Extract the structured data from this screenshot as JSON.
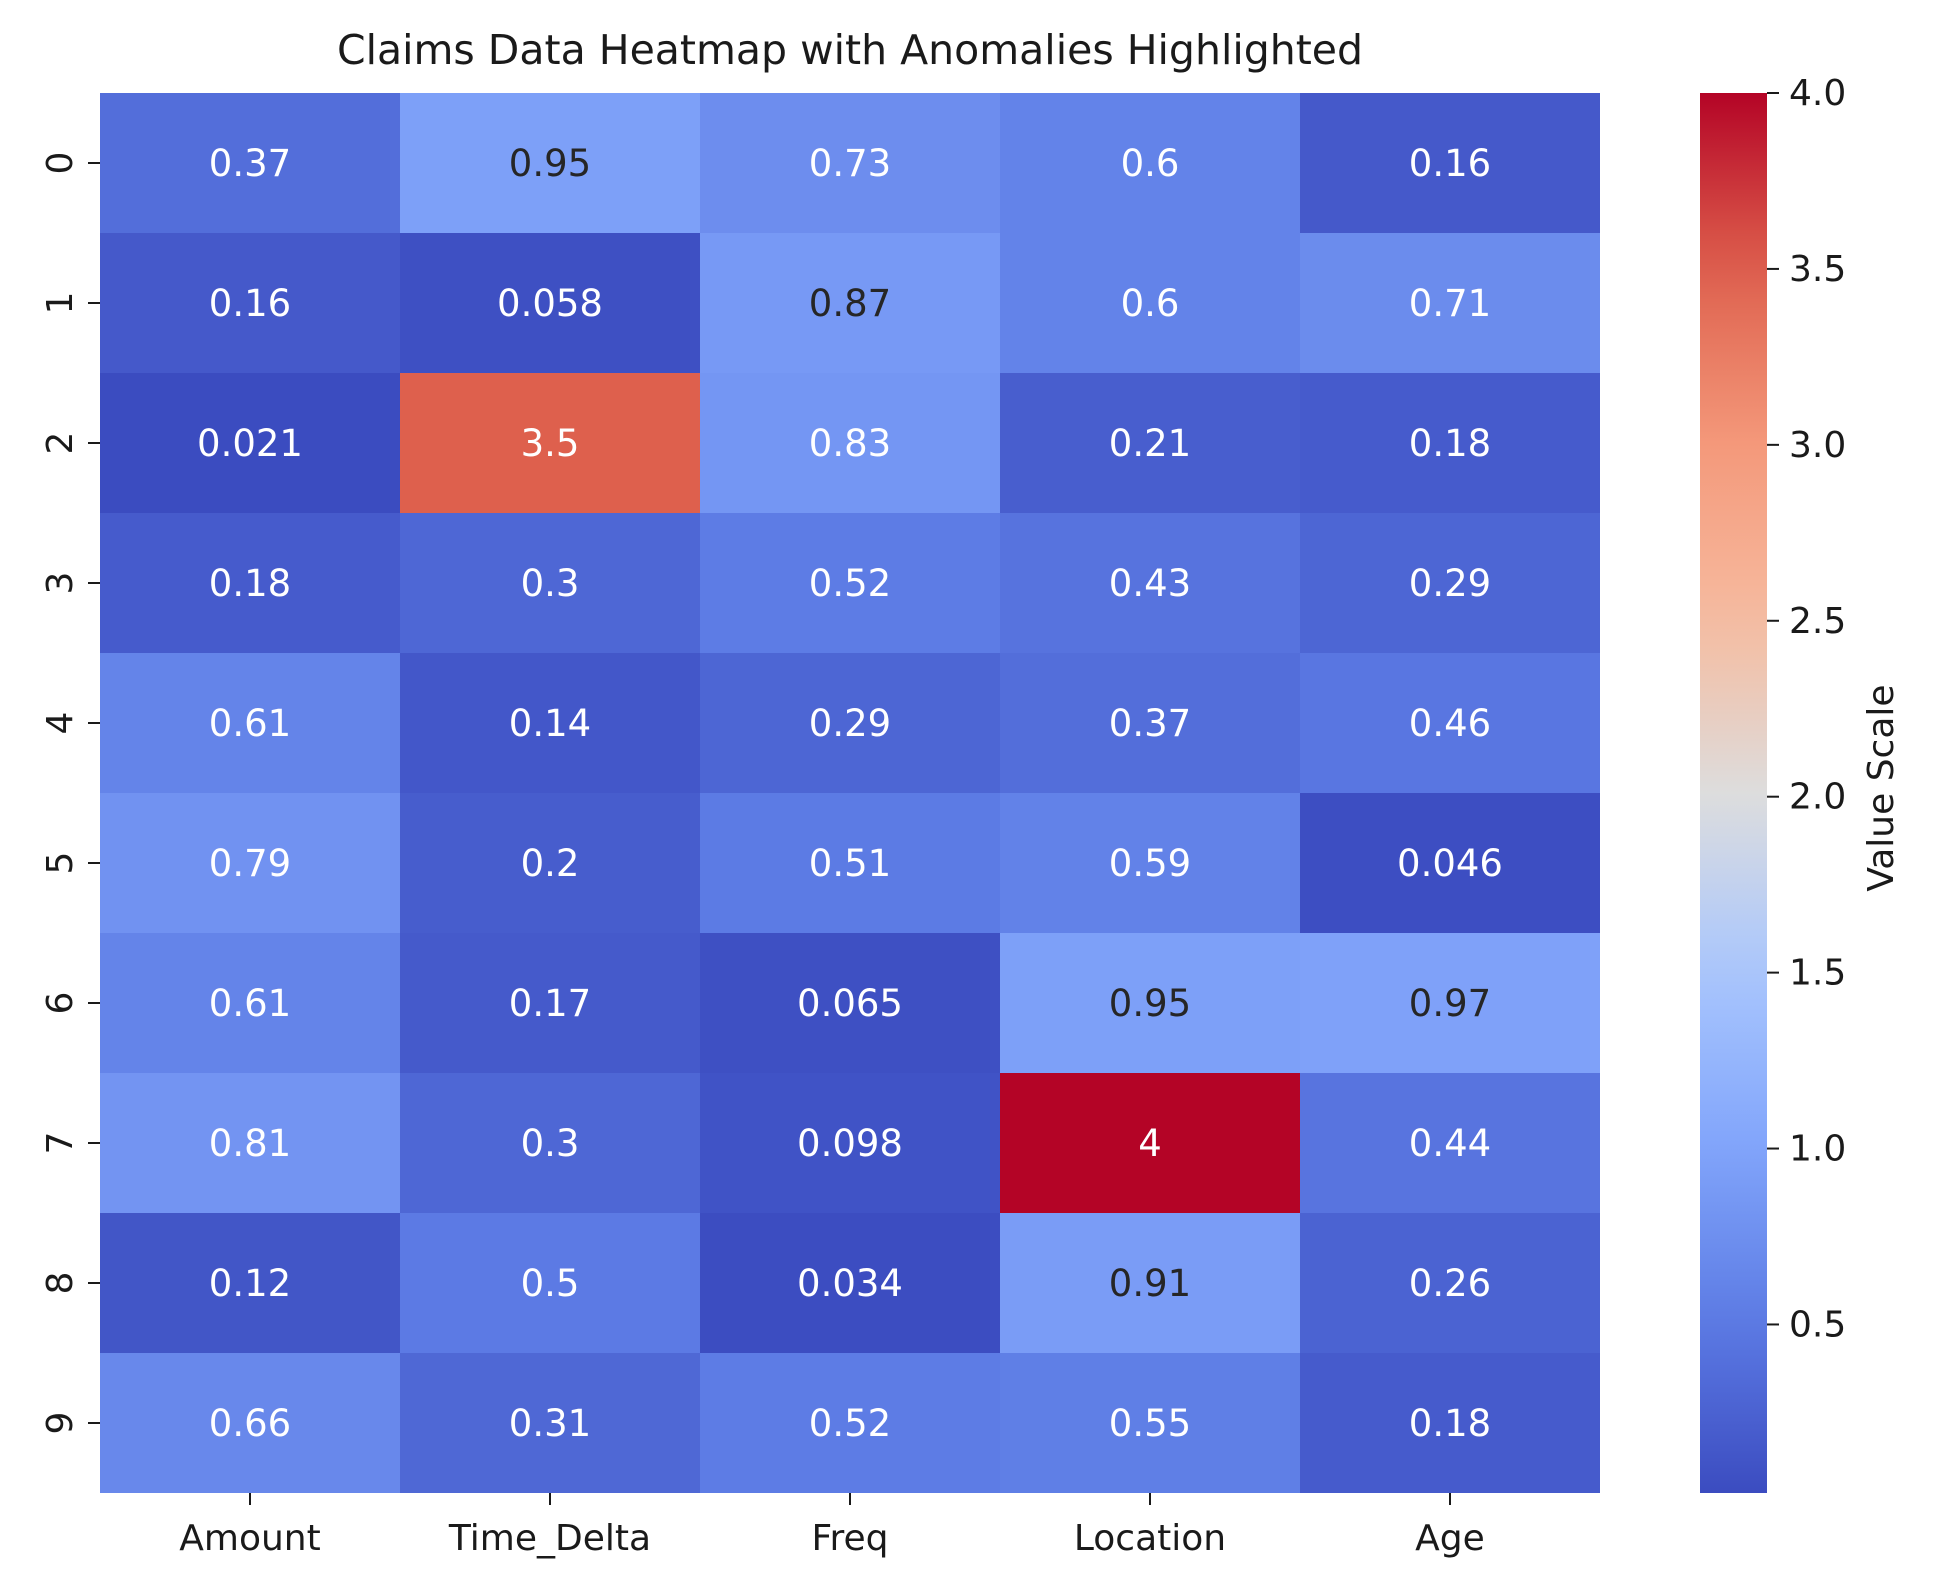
{
  "chart_data": {
    "type": "heatmap",
    "title": "Claims Data Heatmap with Anomalies Highlighted",
    "columns": [
      "Amount",
      "Time_Delta",
      "Freq",
      "Location",
      "Age"
    ],
    "rows": [
      "0",
      "1",
      "2",
      "3",
      "4",
      "5",
      "6",
      "7",
      "8",
      "9"
    ],
    "values": [
      [
        0.37,
        0.95,
        0.73,
        0.6,
        0.16
      ],
      [
        0.16,
        0.058,
        0.87,
        0.6,
        0.71
      ],
      [
        0.021,
        3.5,
        0.83,
        0.21,
        0.18
      ],
      [
        0.18,
        0.3,
        0.52,
        0.43,
        0.29
      ],
      [
        0.61,
        0.14,
        0.29,
        0.37,
        0.46
      ],
      [
        0.79,
        0.2,
        0.51,
        0.59,
        0.046
      ],
      [
        0.61,
        0.17,
        0.065,
        0.95,
        0.97
      ],
      [
        0.81,
        0.3,
        0.098,
        4,
        0.44
      ],
      [
        0.12,
        0.5,
        0.034,
        0.91,
        0.26
      ],
      [
        0.66,
        0.31,
        0.52,
        0.55,
        0.18
      ]
    ],
    "value_range": [
      0.021,
      4.0
    ],
    "colormap": "coolwarm",
    "colorbar": {
      "label": "Value Scale",
      "ticks": [
        0.5,
        1.0,
        1.5,
        2.0,
        2.5,
        3.0,
        3.5,
        4.0
      ],
      "tick_labels": [
        "0.5",
        "1.0",
        "1.5",
        "2.0",
        "2.5",
        "3.0",
        "3.5",
        "4.0"
      ]
    },
    "annotation_colors": {
      "light": "#ffffff",
      "dark": "#262626"
    }
  }
}
